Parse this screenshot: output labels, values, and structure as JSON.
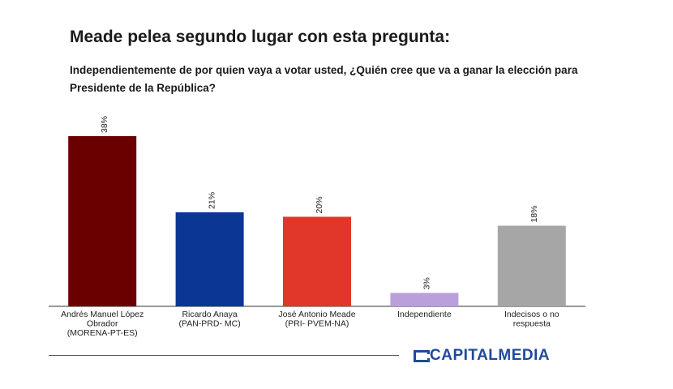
{
  "chart_data": {
    "type": "bar",
    "title": "Meade pelea segundo lugar con esta pregunta:",
    "subtitle": "Independientemente de por quien vaya a votar usted, ¿Quién cree que va a ganar la elección para Presidente de la República?",
    "categories": [
      [
        "Andrés Manuel López",
        "Obrador",
        "(MORENA-PT-ES)"
      ],
      [
        "Ricardo Anaya",
        "(PAN-PRD- MC)"
      ],
      [
        "José Antonio Meade",
        "(PRI- PVEM-NA)"
      ],
      [
        "Independiente"
      ],
      [
        "Indecisos o no",
        "respuesta"
      ]
    ],
    "values": [
      38,
      21,
      20,
      3,
      18
    ],
    "value_labels": [
      "38%",
      "21%",
      "20%",
      "3%",
      "18%"
    ],
    "colors": [
      "#6b0000",
      "#0b3694",
      "#e1372a",
      "#b9a0db",
      "#a6a6a6"
    ],
    "ylim": [
      0,
      38
    ],
    "grid": false,
    "legend": "none"
  },
  "brand": {
    "name": "CAPITALMEDIA",
    "color": "#1f4a9a",
    "icon": "capitalmedia-logo-icon"
  }
}
